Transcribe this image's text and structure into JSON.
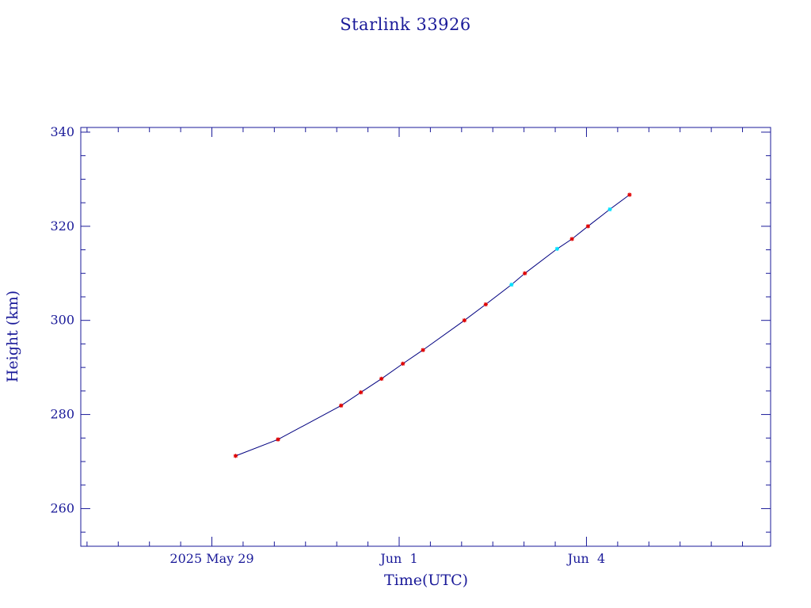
{
  "chart_data": {
    "type": "line",
    "title": "Starlink 33926",
    "xlabel": "Time(UTC)",
    "ylabel": "Height (km)",
    "x_unit": "days",
    "xlim": [
      "2025-05-26T21:36",
      "2025-06-06T22:48"
    ],
    "ylim": [
      252,
      341
    ],
    "x_ticks": [
      {
        "label": "2025 May 29",
        "value": "2025-05-29T00:00"
      },
      {
        "label": "Jun  1",
        "value": "2025-06-01T00:00"
      },
      {
        "label": "Jun  4",
        "value": "2025-06-04T00:00"
      }
    ],
    "y_ticks": [
      260,
      280,
      300,
      320,
      340
    ],
    "series": [
      {
        "color": "#000080",
        "marker_color": "#e00000",
        "alt_marker_color": "#00e0ff",
        "points": [
          {
            "x": "2025-05-29T09:07",
            "y": 271.2,
            "marker": "red"
          },
          {
            "x": "2025-05-30T01:26",
            "y": 274.7,
            "marker": "red"
          },
          {
            "x": "2025-05-31T01:41",
            "y": 281.9,
            "marker": "red"
          },
          {
            "x": "2025-05-31T09:17",
            "y": 284.7,
            "marker": "red"
          },
          {
            "x": "2025-05-31T17:12",
            "y": 287.6,
            "marker": "red"
          },
          {
            "x": "2025-06-01T01:26",
            "y": 290.8,
            "marker": "red"
          },
          {
            "x": "2025-06-01T09:10",
            "y": 293.7,
            "marker": "red"
          },
          {
            "x": "2025-06-02T01:05",
            "y": 300.0,
            "marker": "red"
          },
          {
            "x": "2025-06-02T09:17",
            "y": 303.4,
            "marker": "red"
          },
          {
            "x": "2025-06-02T19:12",
            "y": 307.6,
            "marker": "cyan"
          },
          {
            "x": "2025-06-03T00:19",
            "y": 310.0,
            "marker": "red"
          },
          {
            "x": "2025-06-03T12:43",
            "y": 315.2,
            "marker": "cyan"
          },
          {
            "x": "2025-06-03T18:26",
            "y": 317.3,
            "marker": "red"
          },
          {
            "x": "2025-06-04T00:36",
            "y": 320.0,
            "marker": "red"
          },
          {
            "x": "2025-06-04T09:00",
            "y": 323.6,
            "marker": "cyan"
          },
          {
            "x": "2025-06-04T16:34",
            "y": 326.7,
            "marker": "red"
          }
        ]
      }
    ]
  }
}
